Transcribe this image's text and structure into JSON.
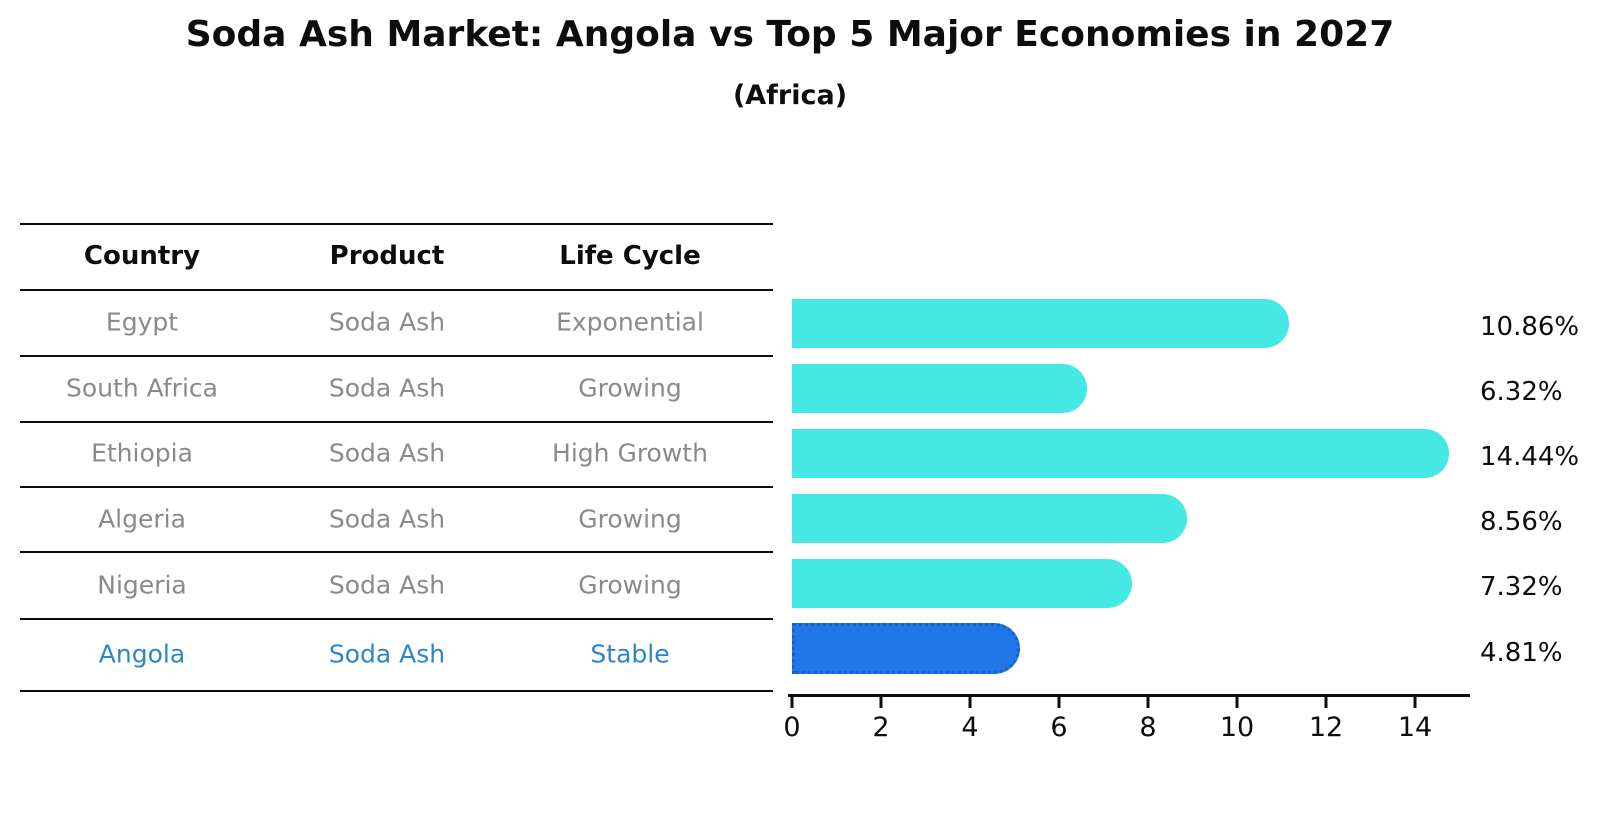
{
  "header": {
    "title": "Soda Ash Market: Angola vs Top 5 Major Economies in 2027",
    "subtitle": "(Africa)"
  },
  "table": {
    "headers": [
      "Country",
      "Product",
      "Life Cycle"
    ],
    "rows": [
      {
        "country": "Egypt",
        "product": "Soda Ash",
        "life_cycle": "Exponential",
        "highlight": false
      },
      {
        "country": "South Africa",
        "product": "Soda Ash",
        "life_cycle": "Growing",
        "highlight": false
      },
      {
        "country": "Ethiopia",
        "product": "Soda Ash",
        "life_cycle": "High Growth",
        "highlight": false
      },
      {
        "country": "Algeria",
        "product": "Soda Ash",
        "life_cycle": "Growing",
        "highlight": false
      },
      {
        "country": "Nigeria",
        "product": "Soda Ash",
        "life_cycle": "Growing",
        "highlight": false
      },
      {
        "country": "Angola",
        "product": "Soda Ash",
        "life_cycle": "Stable",
        "highlight": true
      }
    ]
  },
  "chart_data": {
    "type": "bar",
    "orientation": "horizontal",
    "title": "Soda Ash Market: Angola vs Top 5 Major Economies in 2027 (Africa)",
    "categories": [
      "Egypt",
      "South Africa",
      "Ethiopia",
      "Algeria",
      "Nigeria",
      "Angola"
    ],
    "values": [
      10.86,
      6.32,
      14.44,
      8.56,
      7.32,
      4.81
    ],
    "value_labels": [
      "10.86%",
      "6.32%",
      "14.44%",
      "8.56%",
      "7.32%",
      "4.81%"
    ],
    "xlabel": "",
    "ylabel": "",
    "xlim": [
      0,
      15.2
    ],
    "xticks": [
      "0",
      "2",
      "4",
      "6",
      "8",
      "10",
      "12",
      "14"
    ],
    "grid": false,
    "legend": false,
    "bar_color": "#45e8e2",
    "highlight_index": 5,
    "highlight_bar_color": "#2277e8",
    "highlight_bar_edge_color": "#155fd4",
    "highlight_text_color": "#2e86c8",
    "body_text_color": "#8a8a8a",
    "axis_text_color": "#0d0d0d"
  }
}
